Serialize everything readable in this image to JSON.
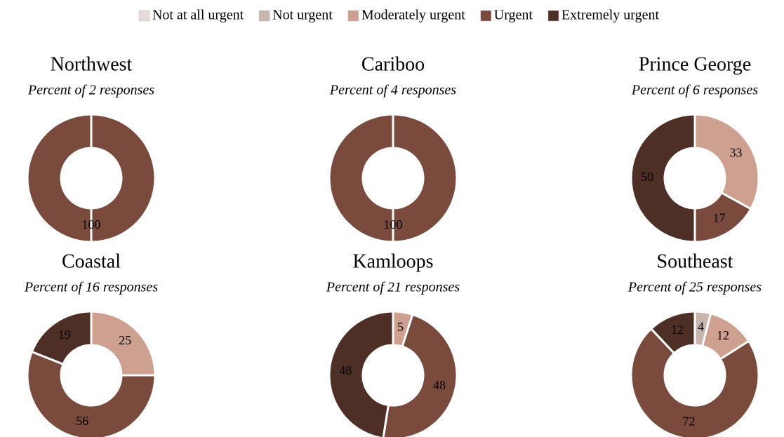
{
  "legend": {
    "labels": [
      "Not at all urgent",
      "Not urgent",
      "Moderately urgent",
      "Urgent",
      "Extremely urgent"
    ],
    "colors": [
      "#e6dbd8",
      "#c8b5ad",
      "#cea090",
      "#7a4a3c",
      "#4e2f26"
    ]
  },
  "chart_data": [
    {
      "type": "donut",
      "title": "Northwest",
      "subtitle": "Percent of 2 responses",
      "categories": [
        "Urgent"
      ],
      "values": [
        100
      ]
    },
    {
      "type": "donut",
      "title": "Cariboo",
      "subtitle": "Percent of 4 responses",
      "categories": [
        "Urgent"
      ],
      "values": [
        100
      ]
    },
    {
      "type": "donut",
      "title": "Prince George",
      "subtitle": "Percent of 6 responses",
      "categories": [
        "Moderately urgent",
        "Urgent",
        "Extremely urgent"
      ],
      "values": [
        33,
        17,
        50
      ]
    },
    {
      "type": "donut",
      "title": "Coastal",
      "subtitle": "Percent of 16 responses",
      "categories": [
        "Moderately urgent",
        "Urgent",
        "Extremely urgent"
      ],
      "values": [
        25,
        56,
        19
      ]
    },
    {
      "type": "donut",
      "title": "Kamloops",
      "subtitle": "Percent of 21 responses",
      "categories": [
        "Moderately urgent",
        "Urgent",
        "Extremely urgent"
      ],
      "values": [
        5,
        48,
        48
      ]
    },
    {
      "type": "donut",
      "title": "Southeast",
      "subtitle": "Percent of 25 responses",
      "categories": [
        "Not urgent",
        "Moderately urgent",
        "Urgent",
        "Extremely urgent"
      ],
      "values": [
        4,
        12,
        72,
        12
      ]
    }
  ]
}
